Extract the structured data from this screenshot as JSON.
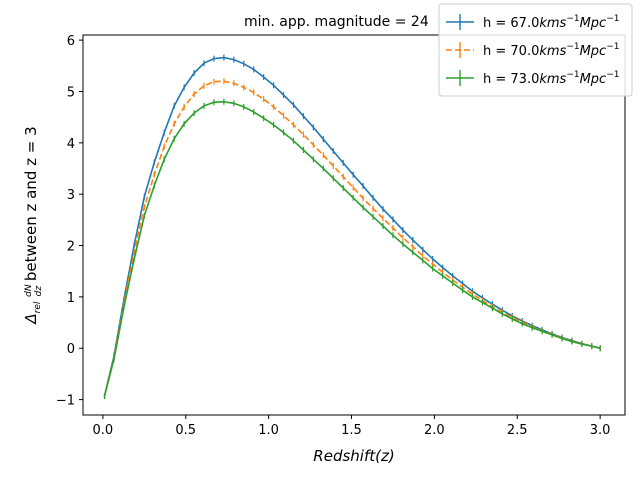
{
  "chart_data": {
    "type": "line",
    "title": "min. app. magnitude = 24",
    "xlabel": "Redshift(z)",
    "ylabel": {
      "delta": "Δ",
      "subscript": "rel",
      "frac_num": "dN",
      "frac_den": "dz",
      "text": "between z and z = 3"
    },
    "xlim": [
      -0.12,
      3.15
    ],
    "ylim": [
      -1.3,
      6.1
    ],
    "xticks": [
      0.0,
      0.5,
      1.0,
      1.5,
      2.0,
      2.5,
      3.0
    ],
    "xtick_labels": [
      "0.0",
      "0.5",
      "1.0",
      "1.5",
      "2.0",
      "2.5",
      "3.0"
    ],
    "yticks": [
      -1,
      0,
      1,
      2,
      3,
      4,
      5,
      6
    ],
    "ytick_labels": [
      "−1",
      "0",
      "1",
      "2",
      "3",
      "4",
      "5",
      "6"
    ],
    "legend_position": "top-right",
    "x": [
      0.01,
      0.067,
      0.127,
      0.188,
      0.25,
      0.31,
      0.37,
      0.43,
      0.49,
      0.55,
      0.61,
      0.67,
      0.73,
      0.79,
      0.85,
      0.91,
      0.97,
      1.03,
      1.09,
      1.15,
      1.21,
      1.27,
      1.33,
      1.39,
      1.45,
      1.51,
      1.57,
      1.63,
      1.69,
      1.75,
      1.81,
      1.87,
      1.93,
      1.99,
      2.05,
      2.11,
      2.17,
      2.23,
      2.29,
      2.35,
      2.41,
      2.47,
      2.53,
      2.59,
      2.65,
      2.71,
      2.77,
      2.83,
      2.89,
      2.95,
      3.0
    ],
    "series": [
      {
        "name": "h = 67.0 kms^-1 Mpc^-1",
        "label_base": "h = 67.0",
        "label_unit": "kms",
        "label_exp1": "−1",
        "label_unit2": "Mpc",
        "label_exp2": "−1",
        "color": "#1f77b4",
        "linestyle": "solid",
        "values": [
          -0.93,
          -0.15,
          0.95,
          2.0,
          2.95,
          3.62,
          4.2,
          4.72,
          5.08,
          5.36,
          5.55,
          5.64,
          5.66,
          5.62,
          5.54,
          5.43,
          5.28,
          5.12,
          4.93,
          4.74,
          4.52,
          4.3,
          4.07,
          3.84,
          3.61,
          3.38,
          3.16,
          2.93,
          2.71,
          2.51,
          2.3,
          2.11,
          1.92,
          1.74,
          1.57,
          1.41,
          1.26,
          1.11,
          0.98,
          0.86,
          0.74,
          0.63,
          0.53,
          0.44,
          0.36,
          0.28,
          0.21,
          0.15,
          0.09,
          0.04,
          0.0
        ]
      },
      {
        "name": "h = 70.0 kms^-1 Mpc^-1",
        "label_base": "h = 70.0",
        "label_unit": "kms",
        "label_exp1": "−1",
        "label_unit2": "Mpc",
        "label_exp2": "−1",
        "color": "#ff7f0e",
        "linestyle": "dashed",
        "values": [
          -0.93,
          -0.18,
          0.88,
          1.86,
          2.75,
          3.38,
          3.93,
          4.37,
          4.7,
          4.95,
          5.11,
          5.19,
          5.2,
          5.16,
          5.08,
          4.98,
          4.85,
          4.7,
          4.53,
          4.35,
          4.16,
          3.96,
          3.76,
          3.55,
          3.34,
          3.13,
          2.92,
          2.72,
          2.53,
          2.34,
          2.15,
          1.98,
          1.8,
          1.64,
          1.48,
          1.33,
          1.19,
          1.05,
          0.93,
          0.81,
          0.7,
          0.6,
          0.51,
          0.42,
          0.34,
          0.27,
          0.2,
          0.14,
          0.09,
          0.04,
          0.0
        ]
      },
      {
        "name": "h = 73.0 kms^-1 Mpc^-1",
        "label_base": "h = 73.0",
        "label_unit": "kms",
        "label_exp1": "−1",
        "label_unit2": "Mpc",
        "label_exp2": "−1",
        "color": "#2ca02c",
        "linestyle": "solid",
        "values": [
          -0.93,
          -0.21,
          0.8,
          1.73,
          2.58,
          3.17,
          3.68,
          4.08,
          4.37,
          4.58,
          4.72,
          4.79,
          4.8,
          4.77,
          4.7,
          4.6,
          4.48,
          4.35,
          4.2,
          4.04,
          3.86,
          3.68,
          3.5,
          3.31,
          3.12,
          2.93,
          2.74,
          2.56,
          2.38,
          2.2,
          2.03,
          1.87,
          1.71,
          1.55,
          1.41,
          1.27,
          1.13,
          1.0,
          0.89,
          0.78,
          0.67,
          0.57,
          0.48,
          0.4,
          0.33,
          0.26,
          0.19,
          0.13,
          0.08,
          0.04,
          0.0
        ]
      }
    ]
  }
}
